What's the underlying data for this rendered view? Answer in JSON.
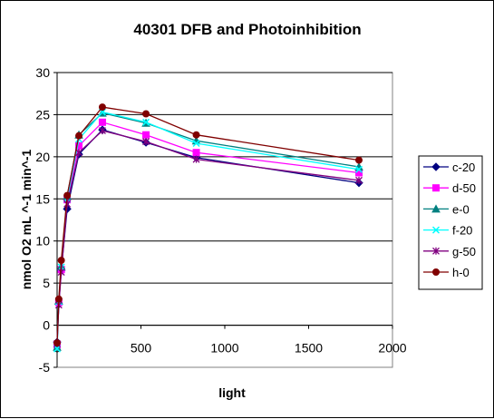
{
  "chart_data": {
    "type": "line",
    "title": "40301 DFB and Photoinhibition",
    "xlabel": "light",
    "ylabel": "nmol O2 mL ^-1 min^-1",
    "xlim": [
      0,
      2000
    ],
    "ylim": [
      -5,
      30
    ],
    "xticks": [
      0,
      500,
      1000,
      1500,
      2000
    ],
    "yticks": [
      -5,
      0,
      5,
      10,
      15,
      20,
      25,
      30
    ],
    "grid": "horizontal major gridlines",
    "legend": "right",
    "x": [
      0,
      10,
      25,
      60,
      130,
      270,
      530,
      830,
      1800
    ],
    "series": [
      {
        "name": "c-20",
        "color": "#000080",
        "marker": "diamond",
        "values": [
          -2.0,
          2.5,
          6.5,
          13.8,
          20.3,
          23.2,
          21.7,
          19.9,
          16.9
        ]
      },
      {
        "name": "d-50",
        "color": "#ff00ff",
        "marker": "square",
        "values": [
          -2.3,
          2.7,
          6.6,
          14.9,
          21.3,
          24.1,
          22.6,
          20.5,
          18.1
        ]
      },
      {
        "name": "e-0",
        "color": "#008080",
        "marker": "triangle",
        "values": [
          -2.6,
          2.9,
          7.0,
          15.3,
          22.6,
          25.2,
          24.0,
          21.9,
          18.8
        ]
      },
      {
        "name": "f-20",
        "color": "#00ffff",
        "marker": "x",
        "values": [
          -2.8,
          2.8,
          6.9,
          15.0,
          22.1,
          25.3,
          24.1,
          21.6,
          18.5
        ]
      },
      {
        "name": "g-50",
        "color": "#800080",
        "marker": "star",
        "values": [
          -2.2,
          2.4,
          6.3,
          14.4,
          20.5,
          23.1,
          21.8,
          19.7,
          17.2
        ]
      },
      {
        "name": "h-0",
        "color": "#800000",
        "marker": "circle",
        "values": [
          -2.1,
          3.1,
          7.7,
          15.4,
          22.5,
          25.9,
          25.1,
          22.6,
          19.6
        ]
      }
    ]
  }
}
